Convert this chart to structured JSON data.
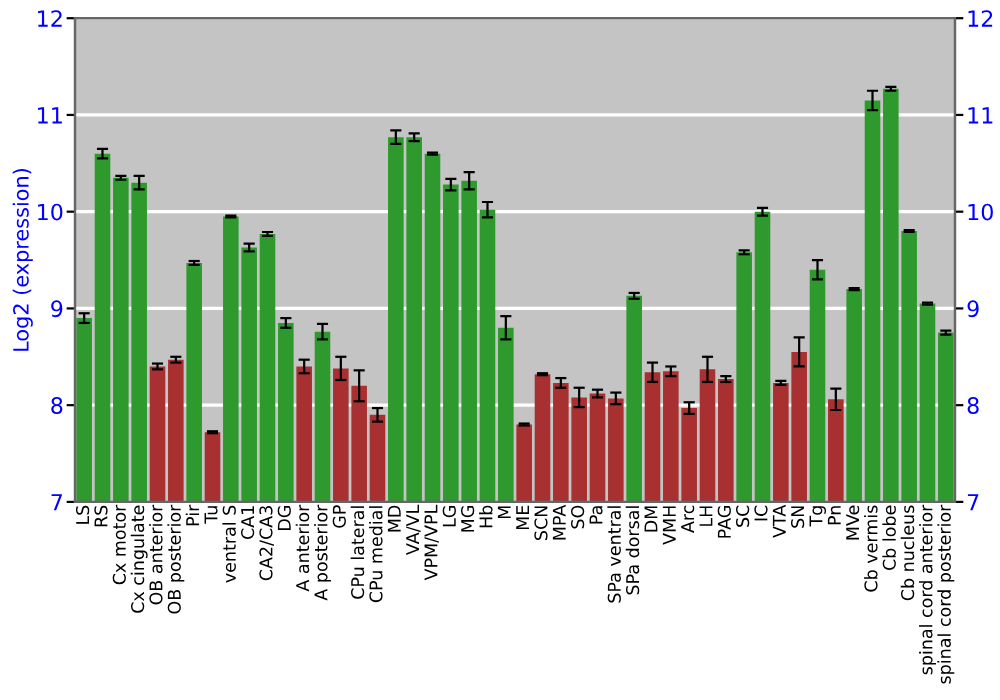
{
  "chart_data": {
    "type": "bar",
    "ylabel": "Log2 (expression)",
    "categories": [
      "LS",
      "RS",
      "Cx motor",
      "Cx cingulate",
      "OB anterior",
      "OB posterior",
      "Pir",
      "Tu",
      "ventral S",
      "CA1",
      "CA2/CA3",
      "DG",
      "A anterior",
      "A posterior",
      "GP",
      "CPu lateral",
      "CPu medial",
      "MD",
      "VA/VL",
      "VPM/VPL",
      "LG",
      "MG",
      "Hb",
      "M",
      "ME",
      "SCN",
      "MPA",
      "SO",
      "Pa",
      "SPa ventral",
      "SPa dorsal",
      "DM",
      "VMH",
      "Arc",
      "LH",
      "PAG",
      "SC",
      "IC",
      "VTA",
      "SN",
      "Tg",
      "Pn",
      "MVe",
      "Cb vermis",
      "Cb lobe",
      "Cb nucleus",
      "spinal cord anterior",
      "spinal cord posterior"
    ],
    "values": [
      8.9,
      10.6,
      10.35,
      10.3,
      8.4,
      8.47,
      9.47,
      7.72,
      9.95,
      9.63,
      9.77,
      8.85,
      8.4,
      8.76,
      8.38,
      8.2,
      7.9,
      10.77,
      10.77,
      10.6,
      10.28,
      10.32,
      10.02,
      8.8,
      7.8,
      8.32,
      8.23,
      8.08,
      8.12,
      8.07,
      9.13,
      8.34,
      8.35,
      7.97,
      8.37,
      8.27,
      9.58,
      10.0,
      8.23,
      8.55,
      9.4,
      8.06,
      9.2,
      11.15,
      11.27,
      9.8,
      9.05,
      8.75
    ],
    "errors": [
      0.05,
      0.05,
      0.02,
      0.07,
      0.03,
      0.03,
      0.02,
      0.01,
      0.01,
      0.04,
      0.02,
      0.05,
      0.07,
      0.08,
      0.12,
      0.16,
      0.07,
      0.07,
      0.04,
      0.01,
      0.06,
      0.09,
      0.08,
      0.12,
      0.01,
      0.01,
      0.05,
      0.1,
      0.04,
      0.06,
      0.03,
      0.1,
      0.05,
      0.06,
      0.13,
      0.03,
      0.02,
      0.04,
      0.02,
      0.15,
      0.1,
      0.11,
      0.01,
      0.1,
      0.02,
      0.01,
      0.01,
      0.02
    ],
    "colors": [
      "#2e9a2e",
      "#2e9a2e",
      "#2e9a2e",
      "#2e9a2e",
      "#a83030",
      "#a83030",
      "#2e9a2e",
      "#a83030",
      "#2e9a2e",
      "#2e9a2e",
      "#2e9a2e",
      "#2e9a2e",
      "#a83030",
      "#2e9a2e",
      "#a83030",
      "#a83030",
      "#a83030",
      "#2e9a2e",
      "#2e9a2e",
      "#2e9a2e",
      "#2e9a2e",
      "#2e9a2e",
      "#2e9a2e",
      "#2e9a2e",
      "#a83030",
      "#a83030",
      "#a83030",
      "#a83030",
      "#a83030",
      "#a83030",
      "#2e9a2e",
      "#a83030",
      "#a83030",
      "#a83030",
      "#a83030",
      "#a83030",
      "#2e9a2e",
      "#2e9a2e",
      "#a83030",
      "#a83030",
      "#2e9a2e",
      "#a83030",
      "#2e9a2e",
      "#2e9a2e",
      "#2e9a2e",
      "#2e9a2e",
      "#2e9a2e",
      "#2e9a2e"
    ],
    "ylim": [
      7,
      12
    ],
    "yticks": [
      7,
      8,
      9,
      10,
      11,
      12
    ],
    "y2lim": [
      7,
      12
    ],
    "y2ticks": [
      7,
      8,
      9,
      10,
      11,
      12
    ],
    "grid": "y"
  }
}
